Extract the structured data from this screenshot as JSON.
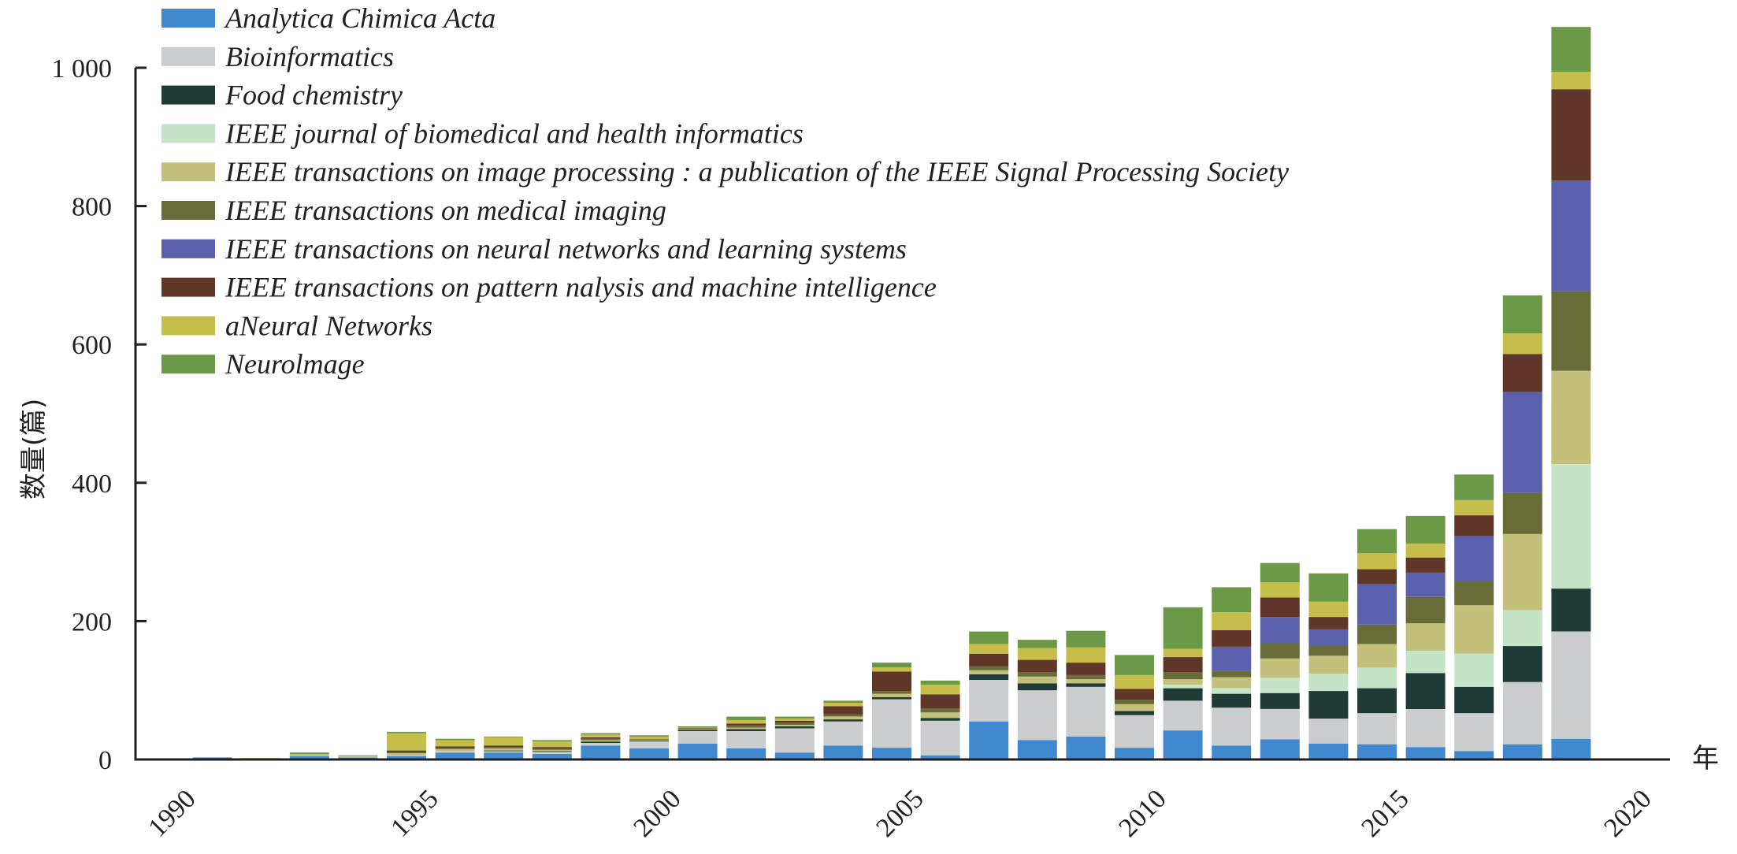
{
  "chart_data": {
    "type": "bar",
    "stacked": true,
    "xlabel": "年",
    "ylabel": "数量(篇)",
    "ylim": [
      0,
      1000
    ],
    "yticks": [
      0,
      200,
      400,
      600,
      800,
      1000
    ],
    "ytick_labels": [
      "0",
      "200",
      "400",
      "600",
      "800",
      "1 000"
    ],
    "xticks": [
      1990,
      1995,
      2000,
      2005,
      2010,
      2015,
      2020
    ],
    "xtick_labels": [
      "1990",
      "1995",
      "2000",
      "2005",
      "2010",
      "2015",
      "2020"
    ],
    "x": [
      1990,
      1991,
      1992,
      1993,
      1994,
      1995,
      1996,
      1997,
      1998,
      1999,
      2000,
      2001,
      2002,
      2003,
      2004,
      2005,
      2006,
      2007,
      2008,
      2009,
      2010,
      2011,
      2012,
      2013,
      2014,
      2015,
      2016,
      2017,
      2018,
      2019,
      2020
    ],
    "legend_position": "top-left",
    "series": [
      {
        "name": "Analytica Chimica Acta",
        "color": "#4189cf",
        "values": [
          0,
          3,
          1,
          5,
          3,
          5,
          10,
          10,
          8,
          20,
          16,
          23,
          16,
          10,
          20,
          17,
          6,
          55,
          28,
          33,
          17,
          42,
          20,
          29,
          23,
          22,
          18,
          12,
          22,
          30,
          0
        ]
      },
      {
        "name": "Bioinformatics",
        "color": "#cbcccd",
        "values": [
          0,
          0,
          0,
          1,
          1,
          1,
          2,
          2,
          3,
          4,
          10,
          18,
          25,
          35,
          35,
          70,
          50,
          60,
          72,
          72,
          47,
          43,
          55,
          44,
          36,
          45,
          55,
          55,
          90,
          155,
          0
        ]
      },
      {
        "name": "Food chemistry",
        "color": "#1f3b35",
        "values": [
          0,
          0,
          0,
          0,
          0,
          0,
          0,
          1,
          1,
          2,
          1,
          2,
          3,
          3,
          3,
          3,
          4,
          8,
          10,
          5,
          6,
          18,
          20,
          23,
          40,
          36,
          52,
          38,
          52,
          62,
          0
        ]
      },
      {
        "name": "IEEE journal of biomedical and health informatics",
        "color": "#c5e3c6",
        "values": [
          0,
          0,
          0,
          0,
          0,
          0,
          0,
          0,
          0,
          0,
          0,
          0,
          0,
          0,
          0,
          0,
          0,
          0,
          0,
          0,
          0,
          5,
          8,
          22,
          25,
          30,
          32,
          48,
          52,
          180,
          0
        ]
      },
      {
        "name": "IEEE transactions on image processing : a publication of the IEEE Signal Processing Society",
        "color": "#c3c07c",
        "values": [
          0,
          0,
          0,
          0,
          1,
          3,
          3,
          3,
          2,
          2,
          1,
          1,
          2,
          2,
          4,
          5,
          8,
          6,
          10,
          6,
          10,
          8,
          16,
          28,
          26,
          34,
          40,
          70,
          110,
          135,
          0
        ]
      },
      {
        "name": "IEEE transactions on medical imaging",
        "color": "#676c39",
        "values": [
          0,
          0,
          0,
          0,
          0,
          2,
          2,
          2,
          2,
          2,
          0,
          0,
          3,
          3,
          3,
          4,
          6,
          6,
          6,
          6,
          6,
          10,
          9,
          22,
          14,
          28,
          38,
          35,
          60,
          115,
          0
        ]
      },
      {
        "name": "IEEE transactions on neural networks and learning systems",
        "color": "#5b60ad",
        "values": [
          0,
          0,
          0,
          0,
          0,
          0,
          0,
          0,
          0,
          0,
          0,
          0,
          0,
          0,
          0,
          0,
          0,
          0,
          0,
          0,
          0,
          0,
          35,
          38,
          24,
          58,
          35,
          65,
          145,
          160,
          0
        ]
      },
      {
        "name": "IEEE transactions on pattern nalysis and machine intelligence",
        "color": "#5f3627",
        "values": [
          0,
          0,
          0,
          0,
          0,
          2,
          2,
          2,
          2,
          2,
          1,
          1,
          3,
          3,
          12,
          28,
          20,
          18,
          18,
          18,
          16,
          22,
          24,
          28,
          18,
          22,
          22,
          30,
          55,
          132,
          0
        ]
      },
      {
        "name": "aNeural Networks",
        "color": "#c6be4a",
        "values": [
          0,
          0,
          1,
          2,
          0,
          25,
          9,
          12,
          8,
          4,
          4,
          1,
          5,
          3,
          5,
          6,
          14,
          14,
          17,
          22,
          20,
          12,
          26,
          22,
          22,
          23,
          20,
          22,
          30,
          25,
          0
        ]
      },
      {
        "name": "Neurolmage",
        "color": "#6b9948",
        "values": [
          0,
          0,
          0,
          2,
          1,
          2,
          2,
          1,
          2,
          2,
          2,
          2,
          5,
          3,
          3,
          7,
          6,
          18,
          12,
          24,
          29,
          60,
          36,
          28,
          41,
          35,
          40,
          37,
          55,
          65,
          0
        ]
      }
    ]
  }
}
